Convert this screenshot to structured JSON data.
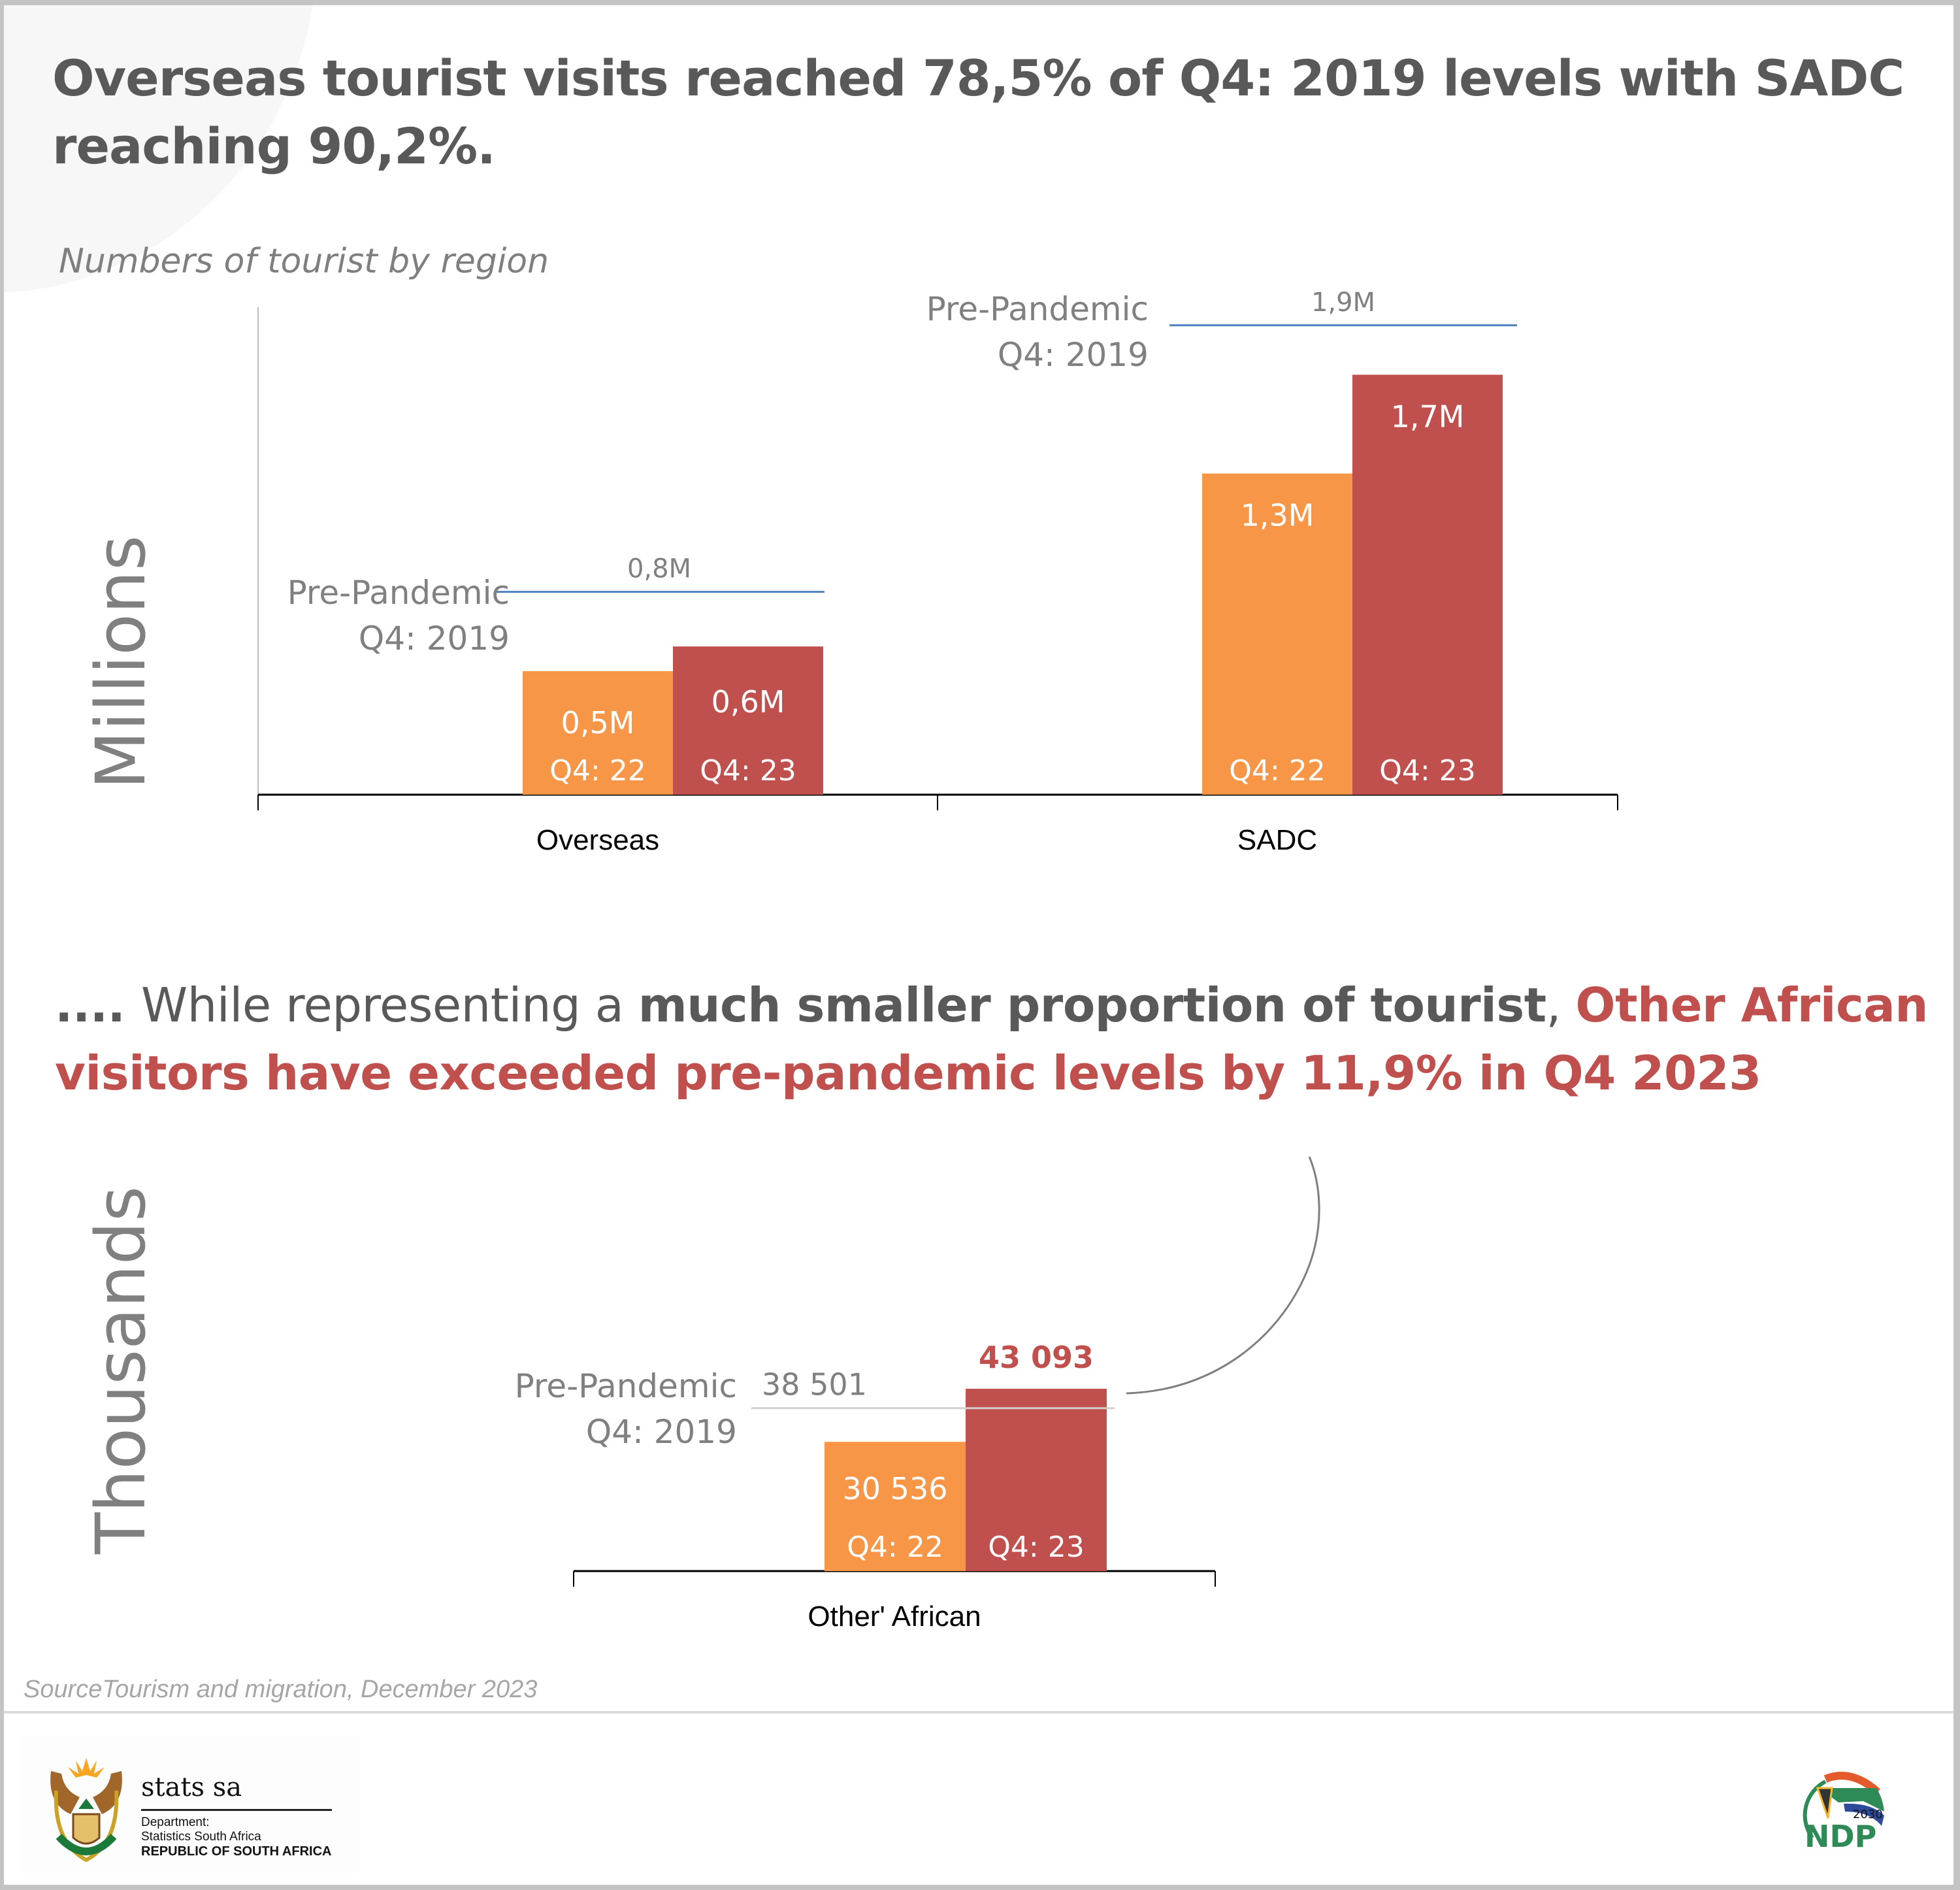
{
  "headline": "Overseas tourist visits reached 78,5% of Q4: 2019 levels with SADC reaching 90,2%.",
  "subtitle": "Numbers of tourist by region",
  "mid_headline": {
    "prefix": ".... ",
    "normal": "While representing a ",
    "bold": "much smaller proportion of tourist",
    "comma": ", ",
    "accent": "Other African visitors have exceeded pre-pandemic levels by 11,9% in Q4 2023"
  },
  "colors": {
    "q4_22": "#f79646",
    "q4_23": "#c0504d",
    "reference_line_top": "#4f81bd",
    "reference_line_bottom": "#d0d0d0",
    "text_gray": "#808080",
    "accent": "#c0504d"
  },
  "chart_data": [
    {
      "type": "bar",
      "title": "Numbers of tourist by region",
      "ylabel": "Millions",
      "xlabel": "",
      "categories": [
        "Overseas",
        "SADC"
      ],
      "series": [
        {
          "name": "Q4: 22",
          "values": [
            0.5,
            1.3
          ],
          "labels": [
            "0,5M",
            "1,3M"
          ]
        },
        {
          "name": "Q4: 23",
          "values": [
            0.6,
            1.7
          ],
          "labels": [
            "0,6M",
            "1,7M"
          ]
        }
      ],
      "reference": {
        "name_line1": "Pre-Pandemic",
        "name_line2": "Q4: 2019",
        "values": [
          0.8,
          1.9
        ],
        "labels": [
          "0,8M",
          "1,9M"
        ]
      },
      "ylim": [
        0,
        2.0
      ],
      "grid": false,
      "legend": "none"
    },
    {
      "type": "bar",
      "ylabel": "Thousands",
      "xlabel": "",
      "categories": [
        "Other' African"
      ],
      "series": [
        {
          "name": "Q4: 22",
          "values": [
            30536
          ],
          "labels": [
            "30 536"
          ]
        },
        {
          "name": "Q4: 23",
          "values": [
            43093
          ],
          "labels": [
            "43 093"
          ]
        }
      ],
      "reference": {
        "name_line1": "Pre-Pandemic",
        "name_line2": "Q4: 2019",
        "values": [
          38501
        ],
        "labels": [
          "38 501"
        ]
      },
      "grid": false,
      "legend": "none"
    }
  ],
  "source": "SourceTourism and migration, December 2023",
  "footer": {
    "brand_name": "stats sa",
    "department_line1": "Department:",
    "department_line2": "Statistics South Africa",
    "country": "REPUBLIC OF SOUTH AFRICA",
    "ndp_year": "2030",
    "ndp_text": "NDP"
  }
}
